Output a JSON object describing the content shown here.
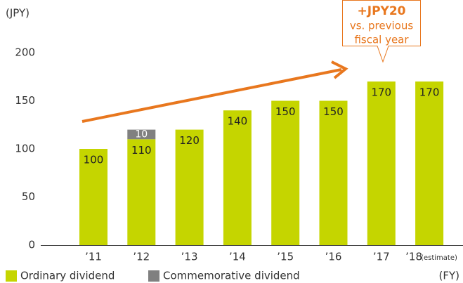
{
  "chart_data": {
    "type": "stacked_bar",
    "unit_label": "(JPY)",
    "x_unit_label": "(FY)",
    "categories": [
      "’11",
      "’12",
      "’13",
      "’14",
      "’15",
      "’16",
      "’17",
      "’18"
    ],
    "category_note": "(estimate)",
    "series": [
      {
        "name": "Ordinary dividend",
        "color": "#c5d500",
        "values": [
          100,
          110,
          120,
          140,
          150,
          150,
          170,
          170
        ]
      },
      {
        "name": "Commemorative dividend",
        "color": "#808080",
        "values": [
          null,
          10,
          null,
          null,
          null,
          null,
          null,
          null
        ]
      }
    ],
    "ylim": [
      0,
      200
    ],
    "yticks": [
      0,
      50,
      100,
      150,
      200
    ],
    "annotation": {
      "title": "+JPY20",
      "lines": [
        "vs. previous",
        "fiscal year"
      ],
      "color": "#e8771e"
    }
  }
}
